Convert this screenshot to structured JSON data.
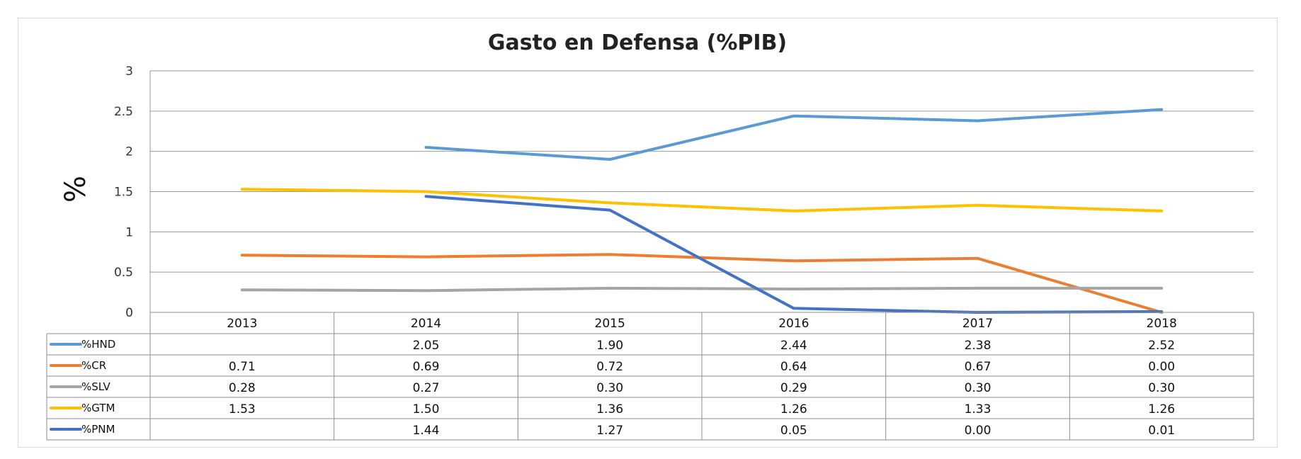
{
  "chart_data": {
    "type": "line",
    "title": "Gasto en Defensa (%PIB)",
    "xlabel": "",
    "ylabel": "%",
    "ylim": [
      0,
      3
    ],
    "yticks": [
      "0",
      "0.5",
      "1",
      "1.5",
      "2",
      "2.5",
      "3"
    ],
    "grid": true,
    "legend": "data table below chart",
    "categories": [
      "2013",
      "2014",
      "2015",
      "2016",
      "2017",
      "2018"
    ],
    "series": [
      {
        "name": "%HND",
        "color": "#5b9bd5",
        "values": [
          null,
          2.05,
          1.9,
          2.44,
          2.38,
          2.52
        ],
        "labels": [
          "",
          "2.05",
          "1.90",
          "2.44",
          "2.38",
          "2.52"
        ]
      },
      {
        "name": "%CR",
        "color": "#ed7d31",
        "values": [
          0.71,
          0.69,
          0.72,
          0.64,
          0.67,
          0.0
        ],
        "labels": [
          "0.71",
          "0.69",
          "0.72",
          "0.64",
          "0.67",
          "0.00"
        ]
      },
      {
        "name": "%SLV",
        "color": "#a5a5a5",
        "values": [
          0.28,
          0.27,
          0.3,
          0.29,
          0.3,
          0.3
        ],
        "labels": [
          "0.28",
          "0.27",
          "0.30",
          "0.29",
          "0.30",
          "0.30"
        ]
      },
      {
        "name": "%GTM",
        "color": "#ffc000",
        "values": [
          1.53,
          1.5,
          1.36,
          1.26,
          1.33,
          1.26
        ],
        "labels": [
          "1.53",
          "1.50",
          "1.36",
          "1.26",
          "1.33",
          "1.26"
        ]
      },
      {
        "name": "%PNM",
        "color": "#4472c4",
        "values": [
          null,
          1.44,
          1.27,
          0.05,
          0.0,
          0.01
        ],
        "labels": [
          "",
          "1.44",
          "1.27",
          "0.05",
          "0.00",
          "0.01"
        ]
      }
    ]
  }
}
